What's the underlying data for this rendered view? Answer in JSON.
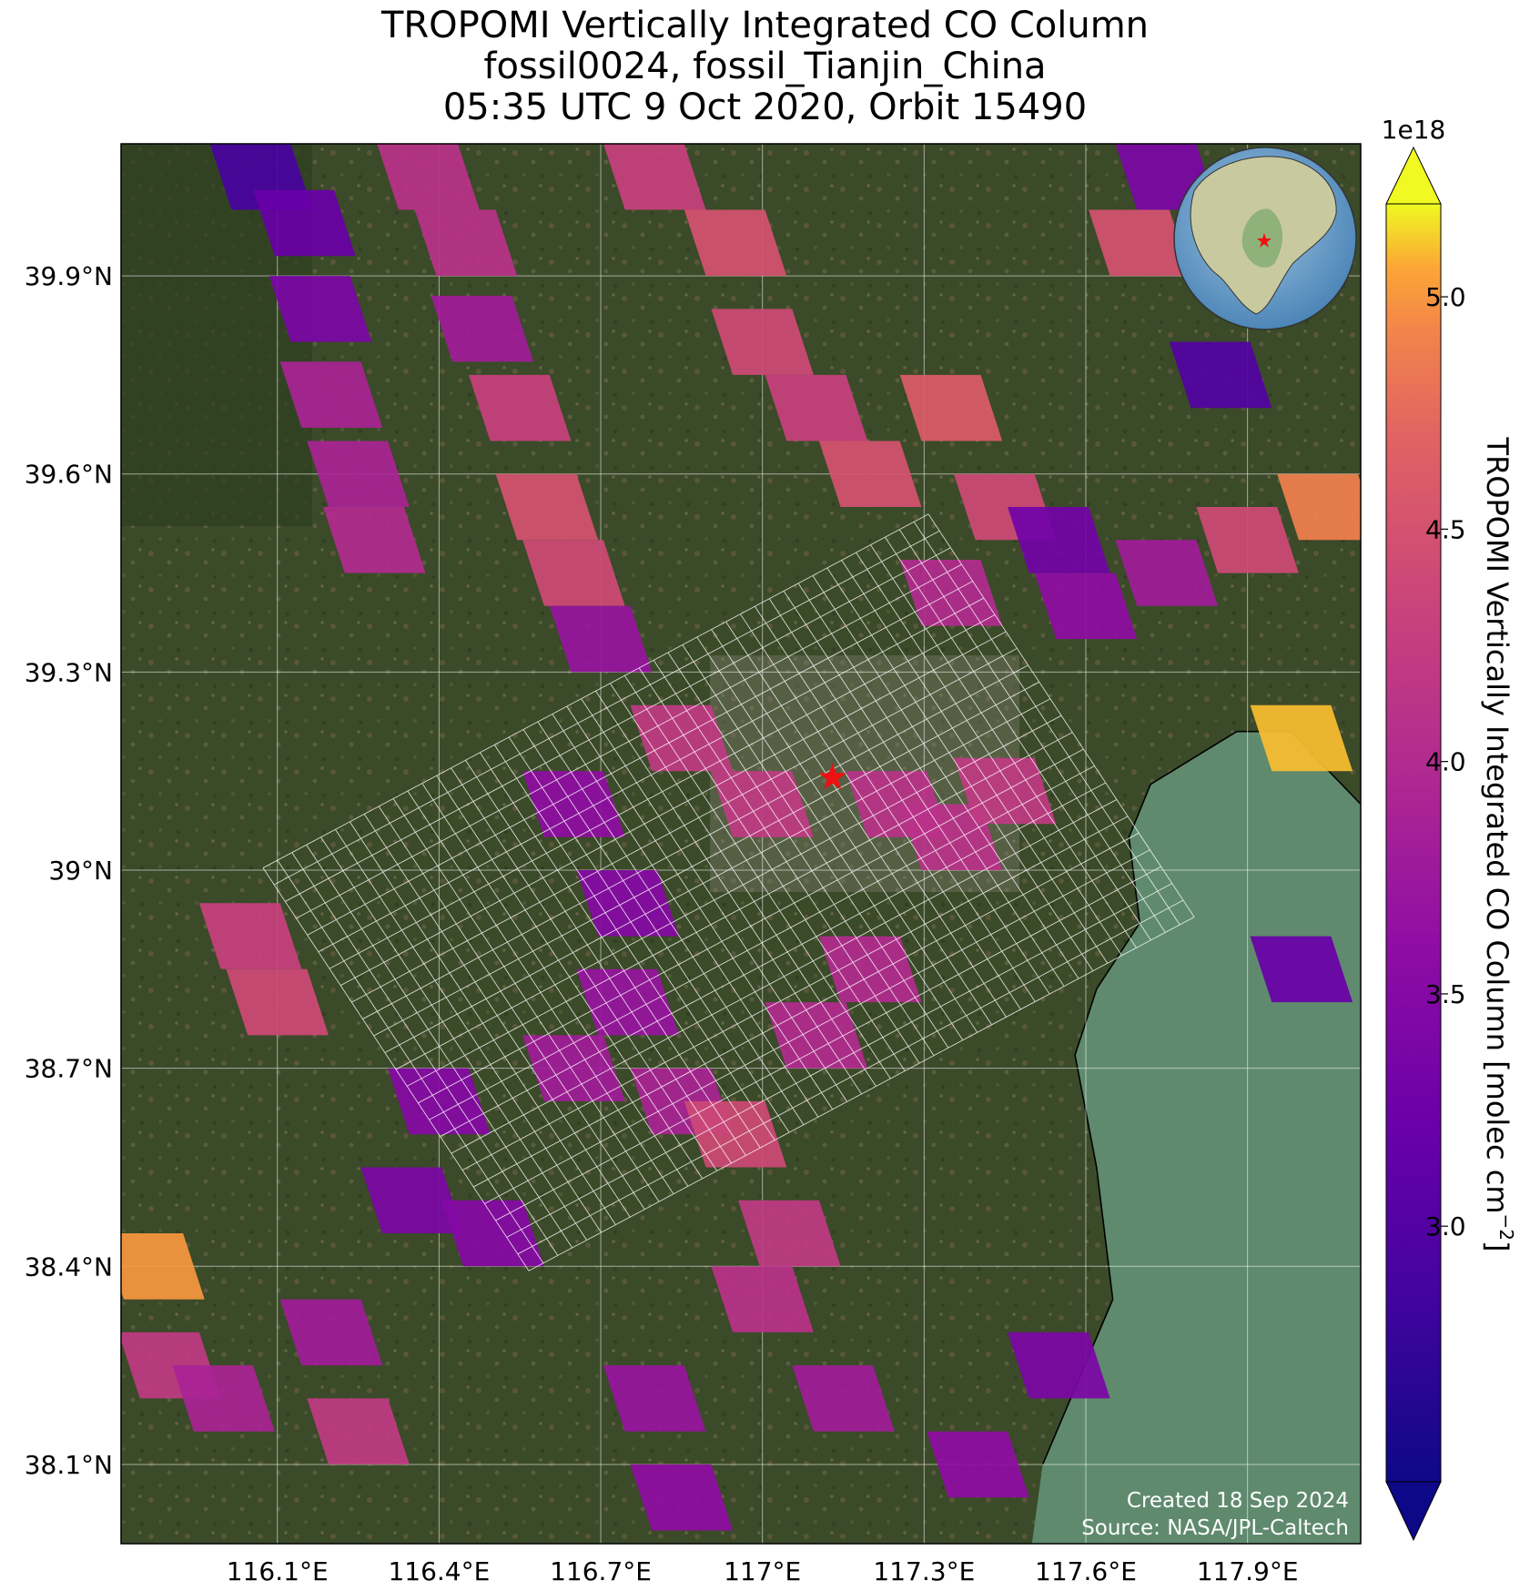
{
  "title": {
    "line1": "TROPOMI Vertically Integrated CO Column",
    "line2": "fossil0024, fossil_Tianjin_China",
    "line3": "05:35 UTC 9 Oct 2020, Orbit 15490"
  },
  "map": {
    "lon_range": [
      115.81,
      118.11
    ],
    "lat_range": [
      37.98,
      40.1
    ],
    "lon_ticks": [
      116.1,
      116.4,
      116.7,
      117.0,
      117.3,
      117.6,
      117.9
    ],
    "lon_tick_labels": [
      "116.1°E",
      "116.4°E",
      "116.7°E",
      "117°E",
      "117.3°E",
      "117.6°E",
      "117.9°E"
    ],
    "lat_ticks": [
      39.9,
      39.6,
      39.3,
      39.0,
      38.7,
      38.4,
      38.1
    ],
    "lat_tick_labels": [
      "39.9°N",
      "39.6°N",
      "39.3°N",
      "39°N",
      "38.7°N",
      "38.4°N",
      "38.1°N"
    ],
    "target": {
      "lon": 117.13,
      "lat": 39.14,
      "marker": "red-star"
    },
    "basemap": "satellite imagery",
    "sea_color": "#5f8a6e",
    "land_color": "#3d4a2a",
    "grid": true
  },
  "colorbar": {
    "label": "TROPOMI Vertically Integrated CO Column [molec cm",
    "label_exp": "−2",
    "label_close": "]",
    "multiplier": "1e18",
    "colormap": "plasma",
    "range": [
      2.45,
      5.2
    ],
    "ticks": [
      3.0,
      3.5,
      4.0,
      4.5,
      5.0
    ],
    "tick_labels": [
      "3.0",
      "3.5",
      "4.0",
      "4.5",
      "5.0"
    ],
    "extend": "both"
  },
  "inset_globe": {
    "center": "East Asia",
    "marker": "red-star"
  },
  "footer": {
    "created": "Created 18 Sep 2024",
    "source": "Source: NASA/JPL-Caltech"
  },
  "chart_data": {
    "type": "heatmap",
    "xlabel": "",
    "ylabel": "",
    "value_units": "1e18 molec cm-2",
    "note": "CO pixel values estimated from colors",
    "pixels": [
      {
        "lon": 116.07,
        "lat": 40.05,
        "v": 2.9
      },
      {
        "lon": 116.15,
        "lat": 39.98,
        "v": 3.2
      },
      {
        "lon": 116.18,
        "lat": 39.85,
        "v": 3.4
      },
      {
        "lon": 116.2,
        "lat": 39.72,
        "v": 3.9
      },
      {
        "lon": 116.25,
        "lat": 39.6,
        "v": 3.9
      },
      {
        "lon": 116.28,
        "lat": 39.5,
        "v": 4.0
      },
      {
        "lon": 116.38,
        "lat": 40.05,
        "v": 4.1
      },
      {
        "lon": 116.45,
        "lat": 39.95,
        "v": 4.1
      },
      {
        "lon": 116.48,
        "lat": 39.82,
        "v": 3.8
      },
      {
        "lon": 116.55,
        "lat": 39.7,
        "v": 4.3
      },
      {
        "lon": 116.6,
        "lat": 39.55,
        "v": 4.5
      },
      {
        "lon": 116.65,
        "lat": 39.45,
        "v": 4.4
      },
      {
        "lon": 116.7,
        "lat": 39.35,
        "v": 3.7
      },
      {
        "lon": 116.8,
        "lat": 40.05,
        "v": 4.3
      },
      {
        "lon": 116.95,
        "lat": 39.95,
        "v": 4.5
      },
      {
        "lon": 117.0,
        "lat": 39.8,
        "v": 4.4
      },
      {
        "lon": 117.1,
        "lat": 39.7,
        "v": 4.3
      },
      {
        "lon": 117.2,
        "lat": 39.6,
        "v": 4.5
      },
      {
        "lon": 117.35,
        "lat": 39.7,
        "v": 4.6
      },
      {
        "lon": 117.45,
        "lat": 39.55,
        "v": 4.4
      },
      {
        "lon": 117.35,
        "lat": 39.42,
        "v": 4.0
      },
      {
        "lon": 117.55,
        "lat": 39.5,
        "v": 3.3
      },
      {
        "lon": 117.6,
        "lat": 39.4,
        "v": 3.6
      },
      {
        "lon": 117.75,
        "lat": 39.45,
        "v": 3.8
      },
      {
        "lon": 117.9,
        "lat": 39.5,
        "v": 4.4
      },
      {
        "lon": 118.05,
        "lat": 39.55,
        "v": 4.9
      },
      {
        "lon": 118.0,
        "lat": 39.2,
        "v": 5.1
      },
      {
        "lon": 117.85,
        "lat": 39.75,
        "v": 3.0
      },
      {
        "lon": 117.7,
        "lat": 39.95,
        "v": 4.5
      },
      {
        "lon": 117.75,
        "lat": 40.05,
        "v": 3.4
      },
      {
        "lon": 116.85,
        "lat": 39.2,
        "v": 4.2
      },
      {
        "lon": 117.0,
        "lat": 39.1,
        "v": 4.2
      },
      {
        "lon": 117.25,
        "lat": 39.1,
        "v": 4.1
      },
      {
        "lon": 117.35,
        "lat": 39.05,
        "v": 4.1
      },
      {
        "lon": 117.45,
        "lat": 39.12,
        "v": 4.2
      },
      {
        "lon": 116.65,
        "lat": 39.1,
        "v": 3.6
      },
      {
        "lon": 116.75,
        "lat": 38.95,
        "v": 3.5
      },
      {
        "lon": 116.75,
        "lat": 38.8,
        "v": 3.7
      },
      {
        "lon": 116.65,
        "lat": 38.7,
        "v": 3.8
      },
      {
        "lon": 116.85,
        "lat": 38.65,
        "v": 3.9
      },
      {
        "lon": 116.95,
        "lat": 38.6,
        "v": 4.4
      },
      {
        "lon": 117.1,
        "lat": 38.75,
        "v": 4.0
      },
      {
        "lon": 117.2,
        "lat": 38.85,
        "v": 4.0
      },
      {
        "lon": 116.4,
        "lat": 38.65,
        "v": 3.5
      },
      {
        "lon": 116.35,
        "lat": 38.5,
        "v": 3.4
      },
      {
        "lon": 116.5,
        "lat": 38.45,
        "v": 3.5
      },
      {
        "lon": 116.05,
        "lat": 38.9,
        "v": 4.3
      },
      {
        "lon": 116.1,
        "lat": 38.8,
        "v": 4.4
      },
      {
        "lon": 115.87,
        "lat": 38.4,
        "v": 5.0
      },
      {
        "lon": 115.9,
        "lat": 38.25,
        "v": 4.2
      },
      {
        "lon": 116.0,
        "lat": 38.2,
        "v": 3.9
      },
      {
        "lon": 116.2,
        "lat": 38.3,
        "v": 3.8
      },
      {
        "lon": 116.25,
        "lat": 38.15,
        "v": 4.2
      },
      {
        "lon": 116.8,
        "lat": 38.2,
        "v": 3.7
      },
      {
        "lon": 116.85,
        "lat": 38.05,
        "v": 3.6
      },
      {
        "lon": 117.15,
        "lat": 38.2,
        "v": 3.8
      },
      {
        "lon": 117.4,
        "lat": 38.1,
        "v": 3.6
      },
      {
        "lon": 117.55,
        "lat": 38.25,
        "v": 3.4
      },
      {
        "lon": 117.05,
        "lat": 38.45,
        "v": 4.2
      },
      {
        "lon": 117.0,
        "lat": 38.35,
        "v": 4.1
      },
      {
        "lon": 118.0,
        "lat": 38.85,
        "v": 3.2
      }
    ]
  }
}
